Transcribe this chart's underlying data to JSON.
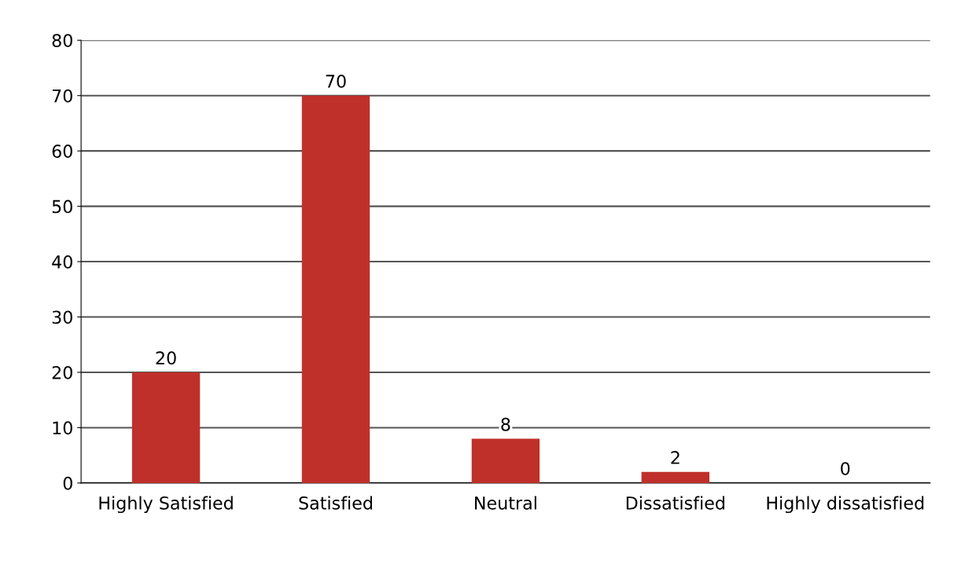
{
  "chart_data": {
    "type": "bar",
    "categories": [
      "Highly Satisfied",
      "Satisfied",
      "Neutral",
      "Dissatisfied",
      "Highly dissatisfied"
    ],
    "values": [
      20,
      70,
      8,
      2,
      0
    ],
    "color": "#c0302a",
    "ylim": [
      0,
      80
    ],
    "yticks": [
      0,
      10,
      20,
      30,
      40,
      50,
      60,
      70,
      80
    ],
    "grid": "y",
    "data_labels": true
  }
}
